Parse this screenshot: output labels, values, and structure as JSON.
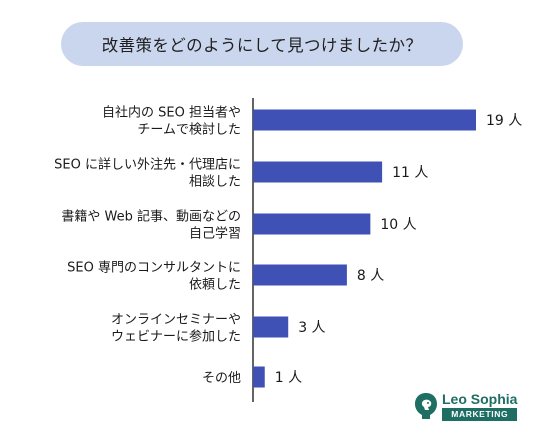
{
  "chart_data": {
    "type": "bar",
    "orientation": "horizontal",
    "title": "改善策をどのようにして見つけましたか？",
    "categories": [
      [
        "自社内の SEO 担当者や",
        "チームで検討した"
      ],
      [
        "SEO に詳しい外注先・代理店に",
        "相談した"
      ],
      [
        "書籍や Web 記事、動画などの",
        "自己学習"
      ],
      [
        "SEO 専門のコンサルタントに",
        "依頼した"
      ],
      [
        "オンラインセミナーや",
        "ウェビナーに参加した"
      ],
      [
        "その他"
      ]
    ],
    "values": [
      19,
      11,
      10,
      8,
      3,
      1
    ],
    "value_labels": [
      "19 人",
      "11 人",
      "10 人",
      "8 人",
      "3 人",
      "1 人"
    ],
    "unit": "人",
    "xlim": [
      0,
      19
    ],
    "grid": false,
    "bar_color": "#3f51b5"
  },
  "logo": {
    "name": "Leo Sophia",
    "sub": "MARKETING",
    "color": "#1e6e64"
  }
}
